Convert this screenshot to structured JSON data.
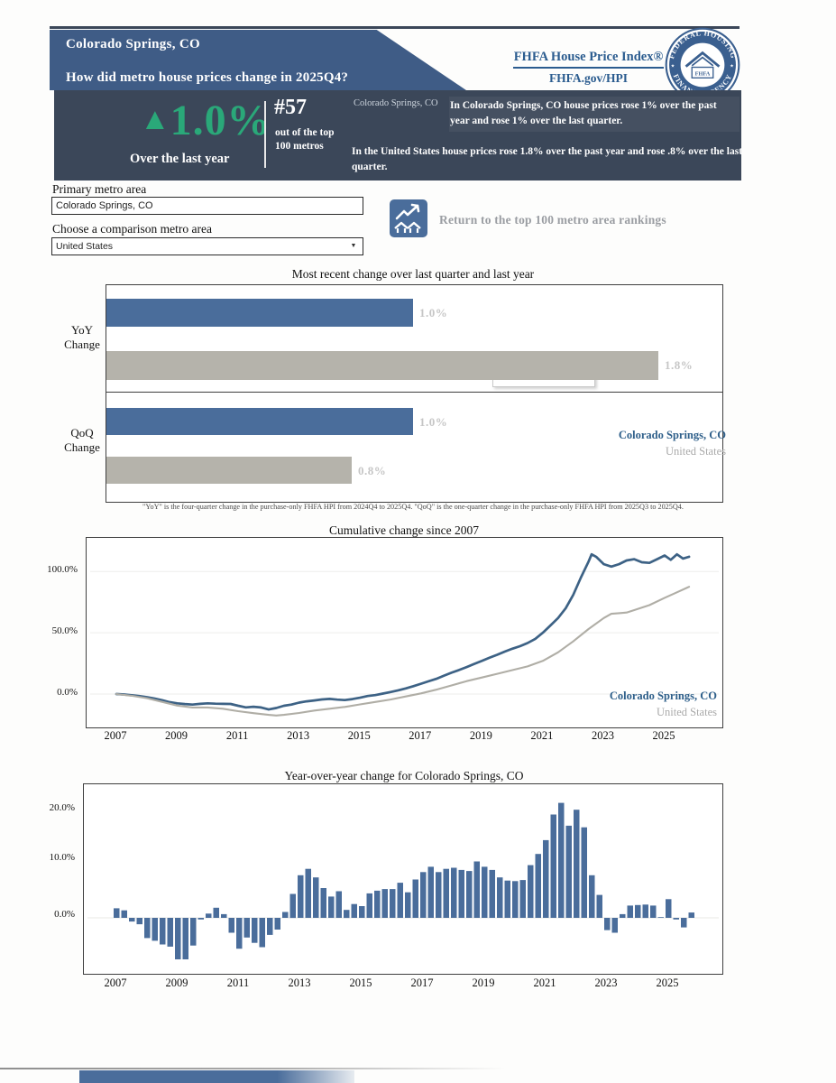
{
  "header": {
    "metro": "Colorado Springs, CO",
    "question": "How did metro house prices change in 2025Q4?",
    "brand": {
      "title": "FHFA House Price Index®",
      "url": "FHFA.gov/HPI",
      "seal_top": "FEDERAL HOUSING",
      "seal_bottom": "FINANCE AGENCY",
      "seal_center": "FHFA"
    }
  },
  "stat_band": {
    "arrow": "▲",
    "pct": "1.0%",
    "caption": "Over the last year",
    "rank": "#57",
    "rank_caption": "out of the top 100 metros",
    "metro_label": "Colorado Springs, CO",
    "metro_text": "In Colorado Springs, CO house prices rose 1% over the past year and rose 1% over the last quarter.",
    "us_text": "In the United States house prices rose 1.8% over the past year and rose .8% over the last quarter."
  },
  "form": {
    "primary_label": "Primary metro area",
    "primary_value": "Colorado Springs, CO",
    "comparison_label": "Choose a comparison metro area",
    "comparison_value": "United States",
    "dropdown_arrow": "▼",
    "return_link": "Return to the top 100 metro area rankings"
  },
  "colors": {
    "banner": "#3f5c86",
    "band": "#3b4759",
    "green": "#2aa879",
    "bar_blue": "#4a6d9b",
    "bar_gray": "#b5b3ab",
    "line_blue": "#3d6285",
    "line_gray": "#b0aea6",
    "brand_blue": "#2b5c8f",
    "legend_blue": "#2e5f8a",
    "legend_gray": "#a9a9a9"
  },
  "chart_data": [
    {
      "type": "bar",
      "title": "Most recent change over last quarter and last year",
      "groups": [
        "YoY Change",
        "QoQ Change"
      ],
      "group_lines": [
        [
          "YoY",
          "Change"
        ],
        [
          "QoQ",
          "Change"
        ]
      ],
      "series": [
        {
          "name": "Colorado Springs, CO",
          "color": "#4a6d9b",
          "values": [
            1.0,
            1.0
          ]
        },
        {
          "name": "United States",
          "color": "#b5b3ab",
          "values": [
            1.8,
            0.8
          ]
        }
      ],
      "labels": [
        [
          "1.0%",
          "1.8%"
        ],
        [
          "1.0%",
          "0.8%"
        ]
      ],
      "xlim": [
        0,
        2.0
      ],
      "annotation": "Colorado Springs, CO",
      "legend_position": "right",
      "footnote": "\"YoY\" is the four-quarter change in the purchase-only FHFA HPI from 2024Q4 to 2025Q4.  \"QoQ\" is the one-quarter change in the purchase-only FHFA HPI from 2025Q3 to 2025Q4."
    },
    {
      "type": "line",
      "title": "Cumulative change since 2007",
      "yticks": [
        {
          "label": "100.0%",
          "value": 100
        },
        {
          "label": "50.0%",
          "value": 50
        },
        {
          "label": "0.0%",
          "value": 0
        }
      ],
      "xticks": [
        2007,
        2009,
        2011,
        2013,
        2015,
        2017,
        2019,
        2021,
        2023,
        2025
      ],
      "ylim": [
        -25,
        130
      ],
      "grid": "horizontal-faint",
      "legend_position": "bottom-right",
      "series": [
        {
          "name": "Colorado Springs, CO",
          "color": "#3d6285",
          "x": [
            2007,
            2007.25,
            2007.5,
            2007.75,
            2008,
            2008.25,
            2008.5,
            2008.75,
            2009,
            2009.25,
            2009.5,
            2009.75,
            2010,
            2010.25,
            2010.5,
            2010.75,
            2011,
            2011.25,
            2011.5,
            2011.75,
            2012,
            2012.25,
            2012.5,
            2012.75,
            2013,
            2013.25,
            2013.5,
            2013.75,
            2014,
            2014.25,
            2014.5,
            2014.75,
            2015,
            2015.25,
            2015.5,
            2015.75,
            2016,
            2016.25,
            2016.5,
            2016.75,
            2017,
            2017.25,
            2017.5,
            2017.75,
            2018,
            2018.25,
            2018.5,
            2018.75,
            2019,
            2019.25,
            2019.5,
            2019.75,
            2020,
            2020.25,
            2020.5,
            2020.75,
            2021,
            2021.25,
            2021.5,
            2021.75,
            2022,
            2022.25,
            2022.5,
            2022.6,
            2022.75,
            2023,
            2023.25,
            2023.5,
            2023.75,
            2024,
            2024.25,
            2024.5,
            2024.75,
            2025,
            2025.2,
            2025.4,
            2025.6,
            2025.8
          ],
          "y": [
            0,
            -0.4,
            -1,
            -1.6,
            -2.6,
            -3.6,
            -5,
            -6.6,
            -7.6,
            -8.2,
            -8.6,
            -8,
            -7.6,
            -7.9,
            -8,
            -8.1,
            -9.6,
            -10.9,
            -10.4,
            -11,
            -12.6,
            -11.4,
            -9.6,
            -8.6,
            -7,
            -6,
            -5.2,
            -4.4,
            -4,
            -4.6,
            -4.9,
            -4.1,
            -3,
            -1.6,
            -0.9,
            0.4,
            1.6,
            3,
            4.6,
            6.4,
            8.4,
            10.4,
            12.4,
            14.9,
            17.4,
            19.6,
            22,
            24.6,
            27,
            29.6,
            32,
            34.6,
            37,
            39,
            41.6,
            45,
            50,
            56,
            62,
            70,
            81,
            95,
            108,
            114,
            112,
            106,
            104,
            106,
            109,
            110,
            107.5,
            107,
            110,
            113,
            109.5,
            114,
            110.5,
            112
          ]
        },
        {
          "name": "United States",
          "color": "#b0aea6",
          "x": [
            2007,
            2007.5,
            2008,
            2008.5,
            2009,
            2009.5,
            2010,
            2010.5,
            2011,
            2011.5,
            2012,
            2012.25,
            2012.5,
            2013,
            2013.5,
            2014,
            2014.5,
            2015,
            2015.5,
            2016,
            2016.5,
            2017,
            2017.5,
            2018,
            2018.5,
            2019,
            2019.5,
            2020,
            2020.5,
            2021,
            2021.5,
            2022,
            2022.5,
            2023,
            2023.25,
            2023.5,
            2023.75,
            2024,
            2024.5,
            2025,
            2025.4,
            2025.8
          ],
          "y": [
            0,
            -1.4,
            -3.4,
            -6.4,
            -9.4,
            -11,
            -11,
            -12,
            -14,
            -15.6,
            -17,
            -17.5,
            -17,
            -15.5,
            -13.5,
            -12,
            -10.5,
            -8.5,
            -6.5,
            -4.5,
            -2,
            0.5,
            3.5,
            7,
            10.5,
            13.5,
            16.5,
            19.5,
            22.5,
            27,
            34,
            43,
            53,
            62,
            65.5,
            66,
            66.5,
            68.5,
            72.5,
            78.5,
            83,
            87.5
          ]
        }
      ]
    },
    {
      "type": "bar",
      "title": "Year-over-year change for Colorado Springs, CO",
      "bar_color": "#4a6d9b",
      "yticks": [
        {
          "label": "20.0%",
          "value": 20
        },
        {
          "label": "10.0%",
          "value": 10
        },
        {
          "label": "0.0%",
          "value": 0
        }
      ],
      "xticks": [
        2007,
        2009,
        2011,
        2013,
        2015,
        2017,
        2019,
        2021,
        2023,
        2025
      ],
      "ylim": [
        -9,
        24
      ],
      "start_quarter": "2007Q1",
      "end_quarter": "2025Q4",
      "values": [
        1.8,
        1.4,
        -0.7,
        -1.2,
        -3.8,
        -4.3,
        -5.0,
        -5.4,
        -7.8,
        -7.8,
        -5.2,
        -0.3,
        0.8,
        1.9,
        0.7,
        -2.8,
        -5.8,
        -3.7,
        -4.7,
        -5.5,
        -3.2,
        -2.2,
        1.1,
        4.5,
        8.0,
        9.2,
        7.6,
        5.6,
        4.0,
        5.0,
        1.5,
        2.6,
        2.2,
        4.6,
        5.1,
        5.4,
        5.4,
        6.6,
        4.8,
        7.2,
        8.6,
        9.6,
        8.6,
        9.2,
        9.4,
        9.0,
        8.8,
        10.6,
        9.6,
        9.0,
        7.6,
        7.0,
        6.9,
        7.1,
        9.9,
        12.0,
        14.6,
        19.4,
        21.6,
        17.3,
        20.3,
        17.0,
        8.0,
        4.3,
        -2.3,
        -2.8,
        0.7,
        2.3,
        2.4,
        2.5,
        2.3,
        0.1,
        3.5,
        -0.3,
        -1.8,
        1.0
      ]
    }
  ]
}
